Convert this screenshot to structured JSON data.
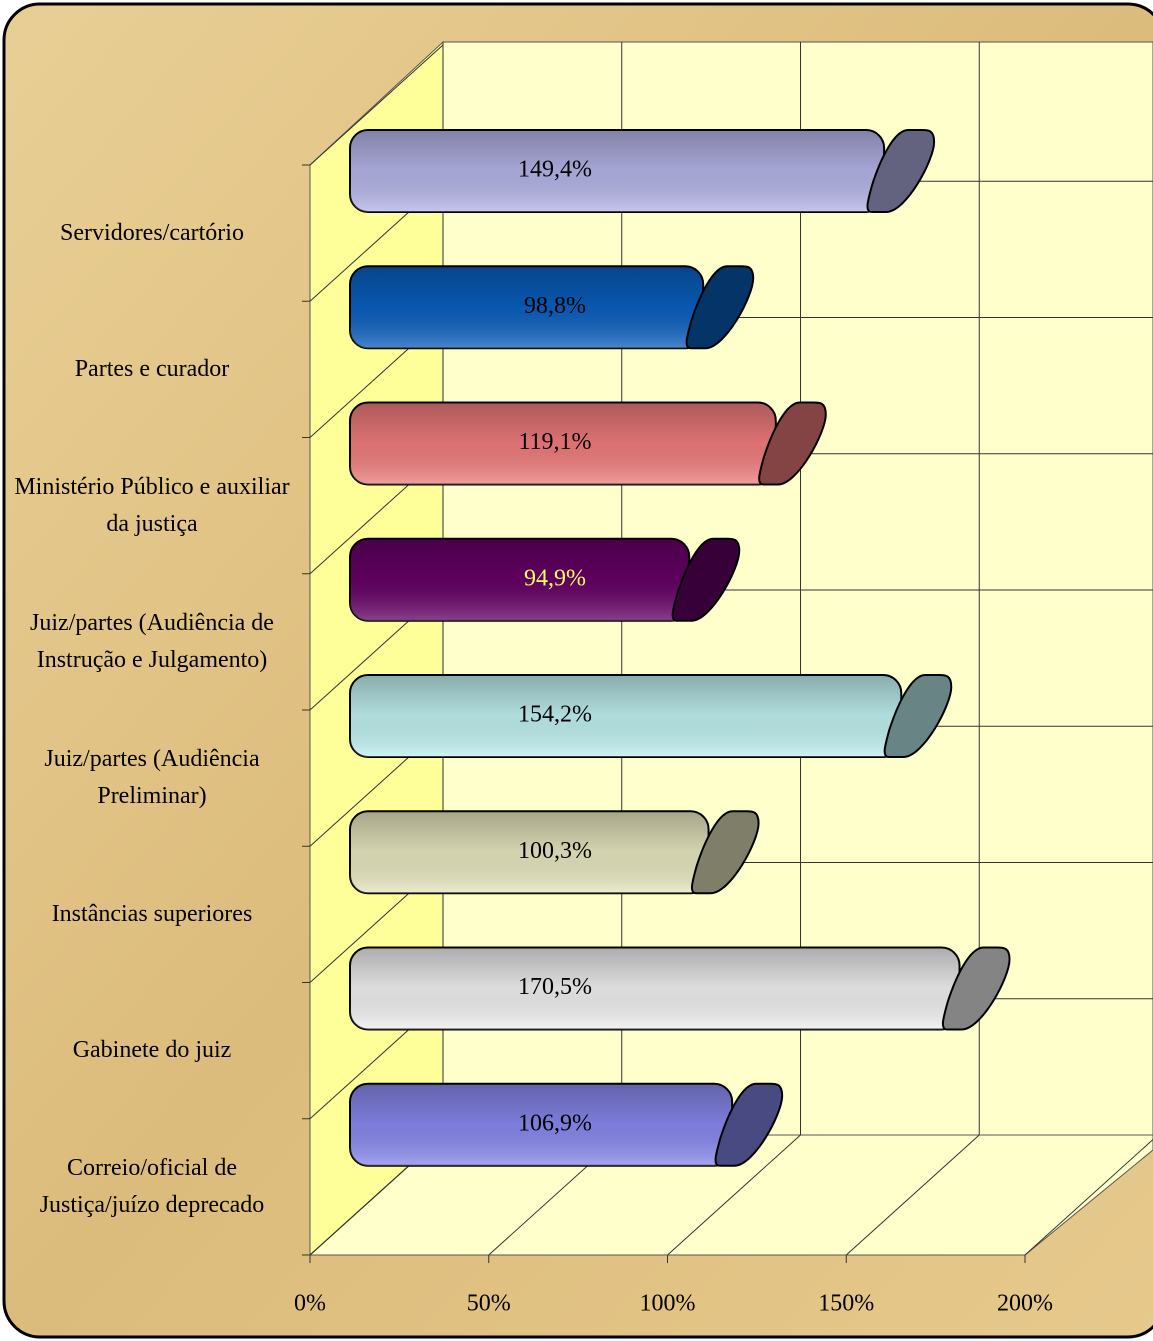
{
  "chart_data": {
    "type": "bar3d",
    "categories": [
      "Servidores/cartório",
      "Partes e curador",
      "Ministério Público e auxiliar da justiça",
      "Juiz/partes (Audiência de Instrução e Julgamento)",
      "Juiz/partes (Audiência Preliminar)",
      "Instâncias superiores",
      "Gabinete do juiz",
      "Correio/oficial de Justiça/juízo deprecado"
    ],
    "values": [
      149.4,
      98.8,
      119.1,
      94.9,
      154.2,
      100.3,
      170.5,
      106.9
    ],
    "value_labels": [
      "149,4%",
      "98,8%",
      "119,1%",
      "94,9%",
      "154,2%",
      "100,3%",
      "170,5%",
      "106,9%"
    ],
    "colors": [
      "#b4b4e8",
      "#0a5fc0",
      "#f07c7c",
      "#660066",
      "#bff0f0",
      "#e6e6bf",
      "#f0f0f0",
      "#8888ee"
    ],
    "xlim": [
      0,
      200
    ],
    "xticks": [
      {
        "value": 0,
        "label": "0%"
      },
      {
        "value": 50,
        "label": "50%"
      },
      {
        "value": 100,
        "label": "100%"
      },
      {
        "value": 150,
        "label": "150%"
      },
      {
        "value": 200,
        "label": "200%"
      }
    ]
  }
}
